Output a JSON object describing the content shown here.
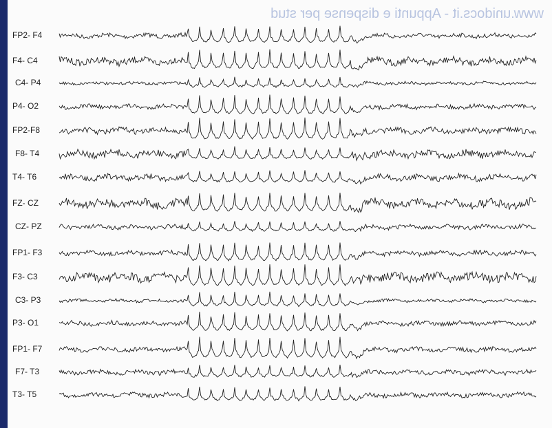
{
  "watermark": "www.unidocs.it - Appunti e dispense per stud",
  "channels": [
    "FP2- F4",
    "F4- C4",
    "C4- P4",
    "P4- O2",
    "FP2-F8",
    "F8- T4",
    "T4- T6",
    "FZ- CZ",
    "CZ- PZ",
    "FP1- F3",
    "F3- C3",
    "C3- P3",
    "P3- O1",
    "FP1- F7",
    "F7- T3",
    "T3- T5"
  ]
}
